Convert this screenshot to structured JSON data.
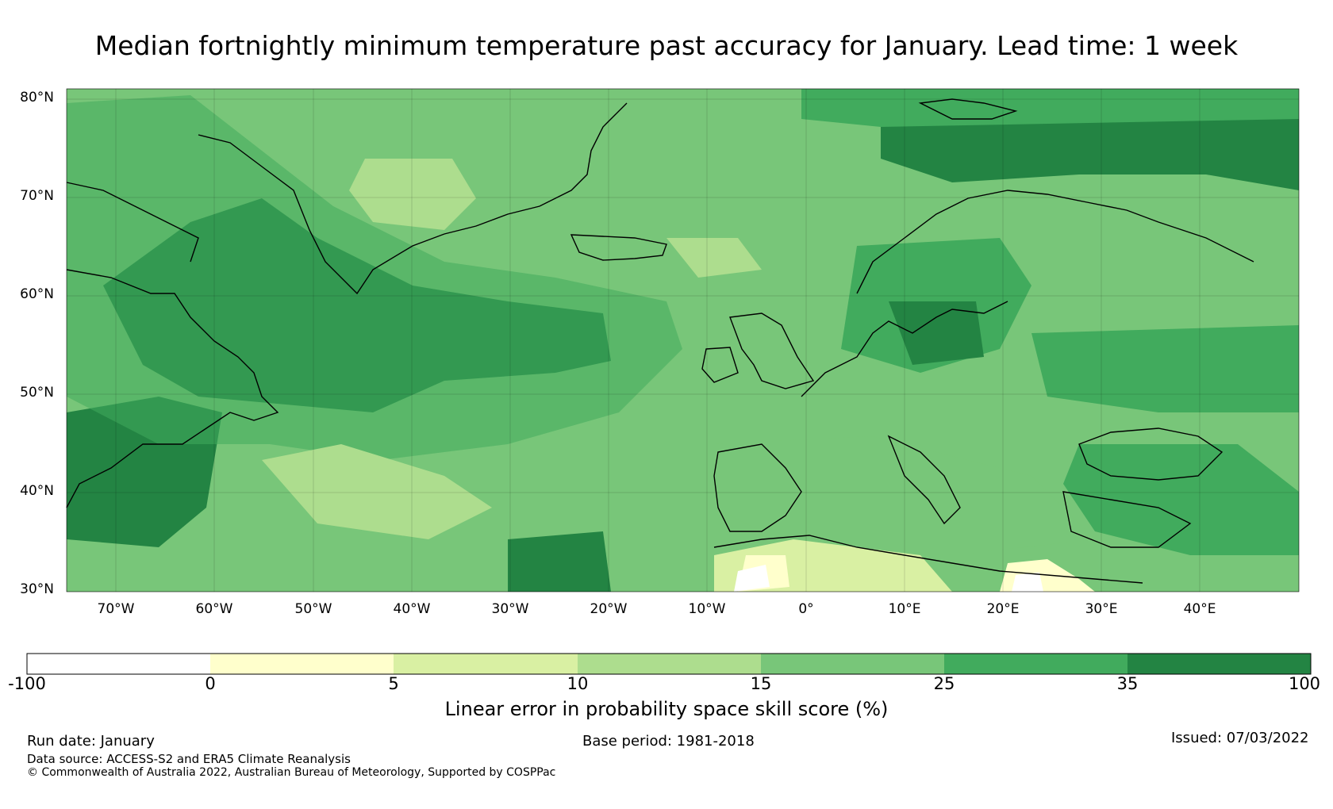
{
  "title": "Median fortnightly minimum temperature past accuracy for January. Lead time: 1 week",
  "map": {
    "lat_labels": [
      "80°N",
      "70°N",
      "60°N",
      "50°N",
      "40°N",
      "30°N"
    ],
    "lon_labels": [
      "70°W",
      "60°W",
      "50°W",
      "40°W",
      "30°W",
      "20°W",
      "10°W",
      "0°",
      "10°E",
      "20°E",
      "30°E",
      "40°E"
    ],
    "lat_range": [
      30,
      81
    ],
    "lon_range": [
      -75,
      50
    ],
    "colors": {
      "c_neg": "#ffffff",
      "c0": "#ffffcc",
      "c5": "#d9f0a3",
      "c10": "#addd8e",
      "c15": "#78c679",
      "c25": "#41ab5d",
      "c35": "#238443"
    },
    "coastline_color": "#000000",
    "regions": [
      {
        "name": "north-atlantic-high-skill",
        "class": "c35"
      },
      {
        "name": "greenland-sea",
        "class": "c15"
      },
      {
        "name": "arctic-kara",
        "class": "c35"
      },
      {
        "name": "europe-central",
        "class": "c15"
      },
      {
        "name": "baltic-scandinavia",
        "class": "c25"
      },
      {
        "name": "north-africa-low-skill",
        "class": "c0"
      }
    ]
  },
  "colorbar": {
    "ticks": [
      "-100",
      "0",
      "5",
      "10",
      "15",
      "25",
      "35",
      "100"
    ],
    "label": "Linear error in probability space skill score (%)"
  },
  "footer": {
    "run_date": "Run date: January",
    "base_period": "Base period: 1981-2018",
    "issued": "Issued: 07/03/2022",
    "data_source": "Data source: ACCESS-S2 and ERA5 Climate Reanalysis",
    "copyright": "© Commonwealth of Australia 2022, Australian Bureau of Meteorology, Supported by COSPPac"
  }
}
